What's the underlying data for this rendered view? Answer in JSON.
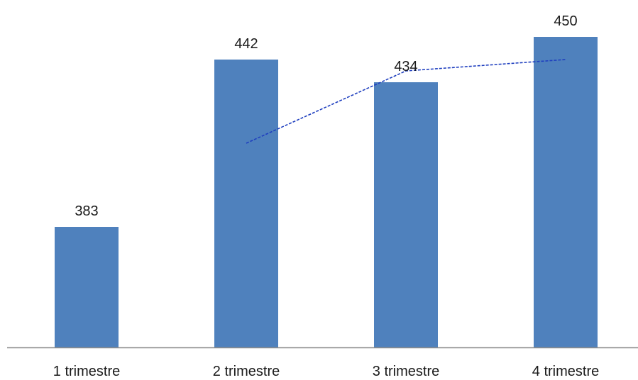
{
  "chart_data": {
    "type": "bar",
    "categories": [
      "1 trimestre",
      "2 trimestre",
      "3 trimestre",
      "4 trimestre"
    ],
    "series": [
      {
        "type": "bar",
        "values": [
          383,
          442,
          434,
          450
        ]
      },
      {
        "type": "line",
        "values": [
          null,
          412.5,
          438,
          442
        ]
      }
    ],
    "data_labels": [
      "383",
      "442",
      "434",
      "450"
    ],
    "title": "",
    "xlabel": "",
    "ylabel": "",
    "legend": "none",
    "grid": false,
    "colors": {
      "bar": "#4f81bd",
      "trendline": "#1f3fbf",
      "axis": "#8c8c8c",
      "text": "#1a1a1a"
    }
  }
}
